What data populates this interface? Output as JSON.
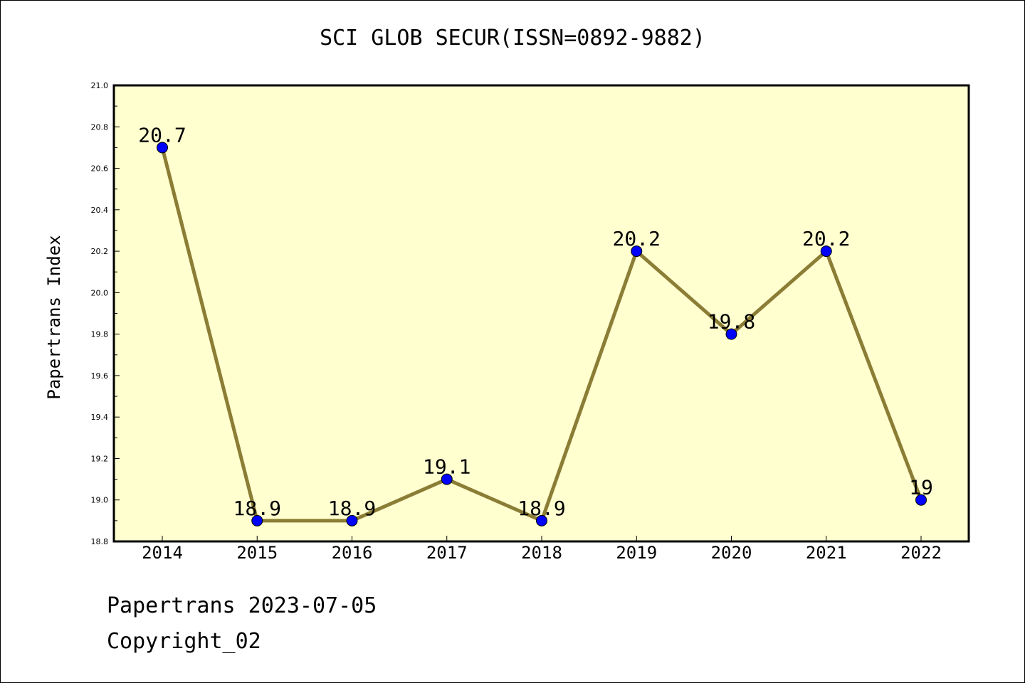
{
  "title": "SCI GLOB SECUR(ISSN=0892-9882)",
  "footer": {
    "line1": "Papertrans 2023-07-05",
    "line2": "Copyright_02"
  },
  "colors": {
    "plot_background": "#ffffd0",
    "line": "#8b7d35",
    "marker": "#0000ff"
  },
  "chart_data": {
    "type": "line",
    "title": "SCI GLOB SECUR(ISSN=0892-9882)",
    "xlabel": "",
    "ylabel": "Papertrans Index",
    "categories": [
      "2014",
      "2015",
      "2016",
      "2017",
      "2018",
      "2019",
      "2020",
      "2021",
      "2022"
    ],
    "series": [
      {
        "values": [
          20.7,
          18.9,
          18.9,
          19.1,
          18.9,
          20.2,
          19.8,
          20.2,
          19.0
        ],
        "labels": [
          "20.7",
          "18.9",
          "18.9",
          "19.1",
          "18.9",
          "20.2",
          "19.8",
          "20.2",
          "19"
        ]
      }
    ],
    "ylim": [
      18.8,
      21.0
    ],
    "yticks": [
      "18.8",
      "19.0",
      "19.2",
      "19.4",
      "19.6",
      "19.8",
      "20.0",
      "20.2",
      "20.4",
      "20.6",
      "20.8",
      "21.0"
    ],
    "grid": false,
    "legend": "none"
  }
}
